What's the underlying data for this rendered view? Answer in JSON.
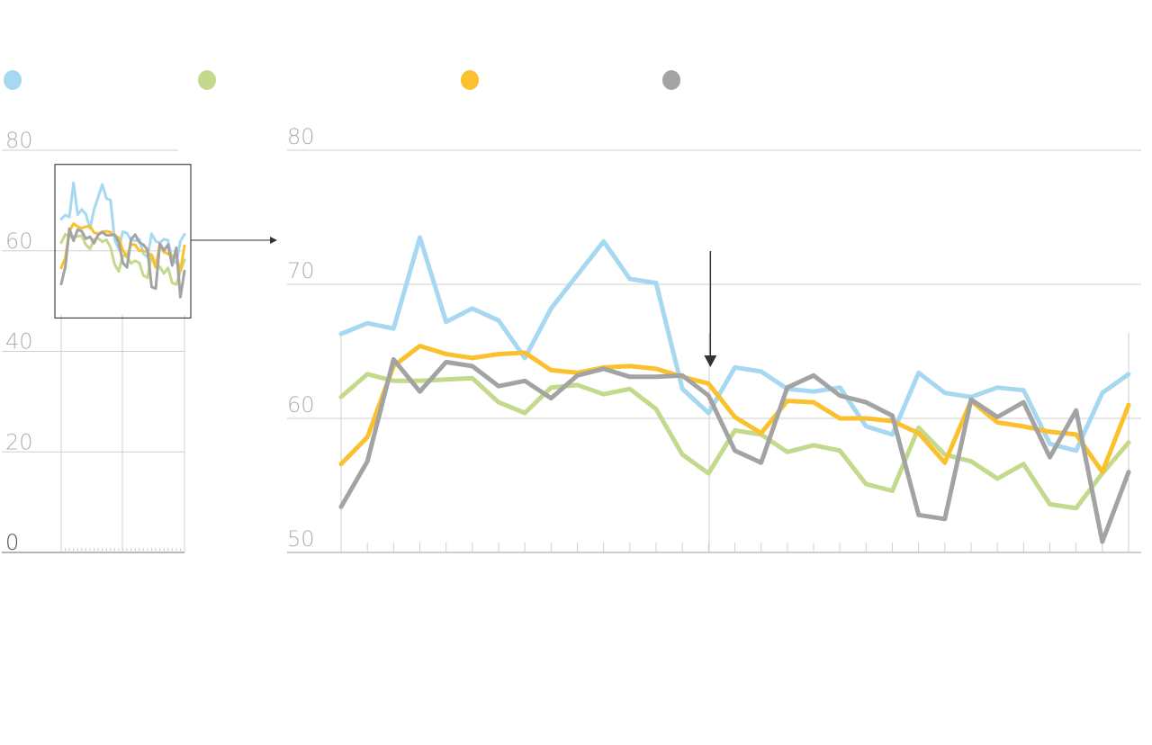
{
  "colors": {
    "series_0": "#a6d8f2",
    "series_1": "#c3d98b",
    "series_2": "#fbc02d",
    "series_3": "#a3a3a3",
    "grid": "#cfcfcf",
    "axis": "#9e9e9e",
    "arrow": "#333333"
  },
  "legend": {
    "placement": "top-left",
    "markers": [
      {
        "color": "#a6d8f2"
      },
      {
        "color": "#c3d98b"
      },
      {
        "color": "#fbc02d"
      },
      {
        "color": "#a3a3a3"
      }
    ]
  },
  "chart_data": [
    {
      "type": "line",
      "panel": "overview",
      "title": "",
      "xlabel": "",
      "ylabel": "",
      "ylim": [
        0,
        80
      ],
      "yticks": [
        "80",
        "60",
        "40",
        "20",
        "0"
      ],
      "grid": true,
      "zoom_box_y_range": [
        47,
        77
      ],
      "x": [
        1,
        2,
        3,
        4,
        5,
        6,
        7,
        8,
        9,
        10,
        11,
        12,
        13,
        14,
        15,
        16,
        17,
        18,
        19,
        20,
        21,
        22,
        23,
        24,
        25,
        26,
        27,
        28,
        29,
        30,
        31
      ],
      "series": [
        {
          "values": [
            66.3,
            67.1,
            66.7,
            73.5,
            67.2,
            68.2,
            67.3,
            64.5,
            68.2,
            70.7,
            73.2,
            70.4,
            70.1,
            62.2,
            60.4,
            63.8,
            63.5,
            62.2,
            62.0,
            62.3,
            59.4,
            58.8,
            63.4,
            61.9,
            61.6,
            62.3,
            62.1,
            58.1,
            57.6,
            61.9,
            63.3
          ]
        },
        {
          "values": [
            61.6,
            63.3,
            62.8,
            62.8,
            62.9,
            63.0,
            61.2,
            60.4,
            62.3,
            62.5,
            61.8,
            62.2,
            60.7,
            57.3,
            55.9,
            59.1,
            58.8,
            57.5,
            58.0,
            57.6,
            55.1,
            54.6,
            59.3,
            57.3,
            56.8,
            55.5,
            56.6,
            53.6,
            53.3,
            55.9,
            58.2
          ]
        },
        {
          "values": [
            56.6,
            58.6,
            63.9,
            65.4,
            64.8,
            64.5,
            64.8,
            64.9,
            63.6,
            63.4,
            63.8,
            63.9,
            63.7,
            63.1,
            62.6,
            60.1,
            58.9,
            61.3,
            61.2,
            60.0,
            60.0,
            59.8,
            58.9,
            56.7,
            61.3,
            59.7,
            59.4,
            59.0,
            58.8,
            56.0,
            61.0
          ]
        },
        {
          "values": [
            53.4,
            56.8,
            64.4,
            62.0,
            64.2,
            63.9,
            62.4,
            62.8,
            61.5,
            63.2,
            63.7,
            63.1,
            63.1,
            63.2,
            61.7,
            57.6,
            56.7,
            62.3,
            63.2,
            61.7,
            61.2,
            60.2,
            52.8,
            52.5,
            61.4,
            60.1,
            61.2,
            57.1,
            60.6,
            50.8,
            56.0
          ]
        }
      ]
    },
    {
      "type": "line",
      "panel": "zoomed-detail",
      "title": "",
      "xlabel": "",
      "ylabel": "",
      "ylim": [
        50,
        80
      ],
      "yticks": [
        "80",
        "70",
        "60",
        "50"
      ],
      "grid": true,
      "annotations": [
        "down-arrow marker at x = 15"
      ],
      "x": [
        1,
        2,
        3,
        4,
        5,
        6,
        7,
        8,
        9,
        10,
        11,
        12,
        13,
        14,
        15,
        16,
        17,
        18,
        19,
        20,
        21,
        22,
        23,
        24,
        25,
        26,
        27,
        28,
        29,
        30,
        31
      ],
      "series": [
        {
          "values": [
            66.3,
            67.1,
            66.7,
            73.5,
            67.2,
            68.2,
            67.3,
            64.5,
            68.2,
            70.7,
            73.2,
            70.4,
            70.1,
            62.2,
            60.4,
            63.8,
            63.5,
            62.2,
            62.0,
            62.3,
            59.4,
            58.8,
            63.4,
            61.9,
            61.6,
            62.3,
            62.1,
            58.1,
            57.6,
            61.9,
            63.3
          ]
        },
        {
          "values": [
            61.6,
            63.3,
            62.8,
            62.8,
            62.9,
            63.0,
            61.2,
            60.4,
            62.3,
            62.5,
            61.8,
            62.2,
            60.7,
            57.3,
            55.9,
            59.1,
            58.8,
            57.5,
            58.0,
            57.6,
            55.1,
            54.6,
            59.3,
            57.3,
            56.8,
            55.5,
            56.6,
            53.6,
            53.3,
            55.9,
            58.2
          ]
        },
        {
          "values": [
            56.6,
            58.6,
            63.9,
            65.4,
            64.8,
            64.5,
            64.8,
            64.9,
            63.6,
            63.4,
            63.8,
            63.9,
            63.7,
            63.1,
            62.6,
            60.1,
            58.9,
            61.3,
            61.2,
            60.0,
            60.0,
            59.8,
            58.9,
            56.7,
            61.3,
            59.7,
            59.4,
            59.0,
            58.8,
            56.0,
            61.0
          ]
        },
        {
          "values": [
            53.4,
            56.8,
            64.4,
            62.0,
            64.2,
            63.9,
            62.4,
            62.8,
            61.5,
            63.2,
            63.7,
            63.1,
            63.1,
            63.2,
            61.7,
            57.6,
            56.7,
            62.3,
            63.2,
            61.7,
            61.2,
            60.2,
            52.8,
            52.5,
            61.4,
            60.1,
            61.2,
            57.1,
            60.6,
            50.8,
            56.0
          ]
        }
      ]
    }
  ]
}
